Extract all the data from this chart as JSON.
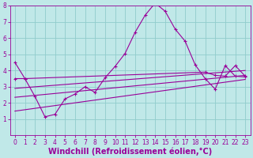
{
  "background_color": "#c0e8e8",
  "grid_color": "#90cccc",
  "line_color": "#990099",
  "xlabel": "Windchill (Refroidissement éolien,°C)",
  "xlim": [
    -0.5,
    23.5
  ],
  "ylim": [
    0,
    8
  ],
  "xticks": [
    0,
    1,
    2,
    3,
    4,
    5,
    6,
    7,
    8,
    9,
    10,
    11,
    12,
    13,
    14,
    15,
    16,
    17,
    18,
    19,
    20,
    21,
    22,
    23
  ],
  "yticks": [
    1,
    2,
    3,
    4,
    5,
    6,
    7,
    8
  ],
  "line1_x": [
    0,
    1,
    2,
    3,
    4,
    5,
    6,
    7,
    8,
    9,
    10,
    11,
    12,
    13,
    14,
    15,
    16,
    17,
    18,
    19,
    20,
    21,
    22,
    23
  ],
  "line1_y": [
    4.5,
    3.5,
    2.4,
    1.15,
    1.3,
    2.25,
    2.55,
    3.0,
    2.65,
    3.55,
    4.25,
    5.05,
    6.35,
    7.4,
    8.15,
    7.65,
    6.55,
    5.8,
    4.35,
    3.5,
    2.85,
    4.3,
    3.65,
    3.6
  ],
  "line2_x": [
    0,
    1,
    19,
    20,
    21,
    22,
    23
  ],
  "line2_y": [
    3.5,
    3.5,
    3.9,
    3.7,
    3.65,
    4.3,
    3.65
  ],
  "line3_x": [
    0,
    23
  ],
  "line3_y": [
    2.9,
    4.0
  ],
  "line4_x": [
    0,
    23
  ],
  "line4_y": [
    2.35,
    3.7
  ],
  "line5_x": [
    0,
    23
  ],
  "line5_y": [
    1.5,
    3.45
  ],
  "tick_fontsize": 5.5,
  "label_fontsize": 7.0
}
